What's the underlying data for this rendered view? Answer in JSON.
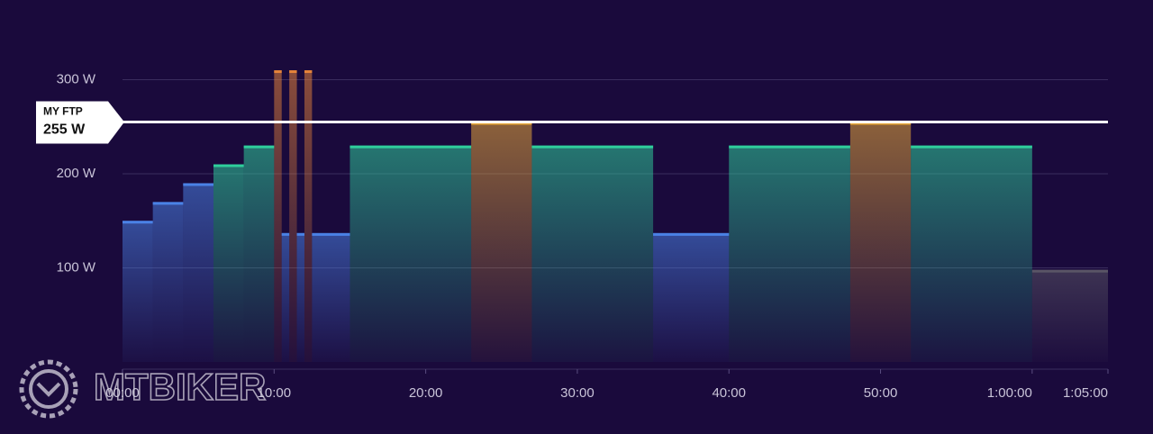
{
  "chart_data": {
    "type": "step",
    "xlim": [
      0,
      65
    ],
    "ylim": [
      0,
      320
    ],
    "xticks": [
      {
        "value": 0,
        "label": "00:00"
      },
      {
        "value": 10,
        "label": "10:00"
      },
      {
        "value": 20,
        "label": "20:00"
      },
      {
        "value": 30,
        "label": "30:00"
      },
      {
        "value": 40,
        "label": "40:00"
      },
      {
        "value": 50,
        "label": "50:00"
      },
      {
        "value": 60,
        "label": "1:00:00"
      },
      {
        "value": 65,
        "label": "1:05:00"
      }
    ],
    "yticks": [
      {
        "value": 100,
        "label": "100 W"
      },
      {
        "value": 200,
        "label": "200 W"
      },
      {
        "value": 300,
        "label": "300 W"
      }
    ],
    "grid": true,
    "ftp": {
      "label": "MY FTP",
      "value": 255,
      "value_label": "255 W"
    },
    "watermark": "MTBIKER",
    "segments": [
      {
        "start": 0,
        "end": 2,
        "value": 150,
        "color": "#4a82e6"
      },
      {
        "start": 2,
        "end": 4,
        "value": 170,
        "color": "#4a82e6"
      },
      {
        "start": 4,
        "end": 6,
        "value": 190,
        "color": "#4a82e6"
      },
      {
        "start": 6,
        "end": 8,
        "value": 210,
        "color": "#2fcf9c"
      },
      {
        "start": 8,
        "end": 10,
        "value": 230,
        "color": "#2fcf9c"
      },
      {
        "start": 10,
        "end": 10.5,
        "value": 310,
        "color": "#e5833a"
      },
      {
        "start": 10.5,
        "end": 11,
        "value": 137,
        "color": "#4a82e6"
      },
      {
        "start": 11,
        "end": 11.5,
        "value": 310,
        "color": "#e5833a"
      },
      {
        "start": 11.5,
        "end": 12,
        "value": 137,
        "color": "#4a82e6"
      },
      {
        "start": 12,
        "end": 12.5,
        "value": 310,
        "color": "#e5833a"
      },
      {
        "start": 12.5,
        "end": 15,
        "value": 137,
        "color": "#4a82e6"
      },
      {
        "start": 15,
        "end": 23,
        "value": 230,
        "color": "#2fcf9c"
      },
      {
        "start": 23,
        "end": 27,
        "value": 255,
        "color": "#e9a83a"
      },
      {
        "start": 27,
        "end": 35,
        "value": 230,
        "color": "#2fcf9c"
      },
      {
        "start": 35,
        "end": 40,
        "value": 137,
        "color": "#4a82e6"
      },
      {
        "start": 40,
        "end": 48,
        "value": 230,
        "color": "#2fcf9c"
      },
      {
        "start": 48,
        "end": 52,
        "value": 255,
        "color": "#e9a83a"
      },
      {
        "start": 52,
        "end": 60,
        "value": 230,
        "color": "#2fcf9c"
      },
      {
        "start": 60,
        "end": 65,
        "value": 98,
        "color": "#5a5566"
      }
    ]
  }
}
